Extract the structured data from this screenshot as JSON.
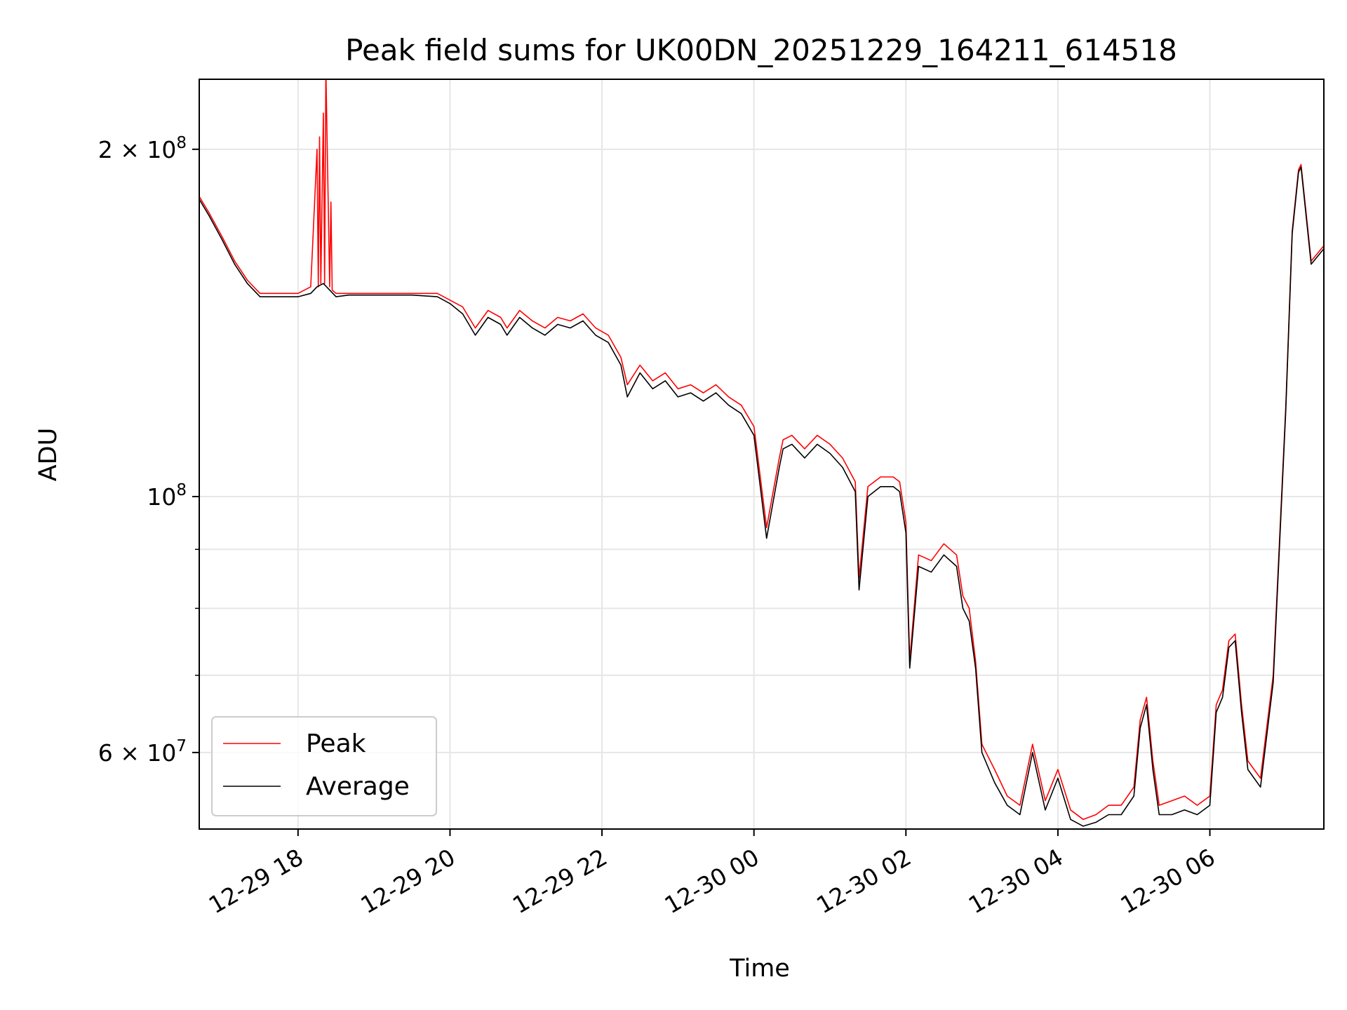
{
  "chart_data": {
    "type": "line",
    "title": "Peak field sums for UK00DN_20251229_164211_614518",
    "xlabel": "Time",
    "ylabel": "ADU",
    "yscale": "log",
    "ylim": [
      51500000,
      230000000
    ],
    "xlim": [
      "12-29 16:42",
      "12-30 07:30"
    ],
    "grid": true,
    "legend_position": "lower-left",
    "x_ticks": [
      "12-29 18",
      "12-29 20",
      "12-29 22",
      "12-30 00",
      "12-30 02",
      "12-30 04",
      "12-30 06"
    ],
    "y_tick_labels": [
      {
        "value": 200000000,
        "mantissa": "2",
        "exponent": "8"
      },
      {
        "value": 100000000,
        "mantissa": "",
        "exponent": "8"
      },
      {
        "value": 60000000,
        "mantissa": "6",
        "exponent": "7"
      }
    ],
    "y_minor_ticks": [
      70000000,
      80000000,
      90000000
    ],
    "series": [
      {
        "name": "Peak",
        "color": "#ff0000",
        "x": [
          "12-29 16:42",
          "12-29 16:50",
          "12-29 17:00",
          "12-29 17:10",
          "12-29 17:20",
          "12-29 17:30",
          "12-29 17:45",
          "12-29 18:00",
          "12-29 18:10",
          "12-29 18:15",
          "12-29 18:16",
          "12-29 18:17",
          "12-29 18:18",
          "12-29 18:20",
          "12-29 18:21",
          "12-29 18:22",
          "12-29 18:25",
          "12-29 18:26",
          "12-29 18:27",
          "12-29 18:30",
          "12-29 18:31",
          "12-29 18:32",
          "12-29 18:35",
          "12-29 18:40",
          "12-29 19:00",
          "12-29 19:30",
          "12-29 19:50",
          "12-29 20:00",
          "12-29 20:10",
          "12-29 20:20",
          "12-29 20:30",
          "12-29 20:40",
          "12-29 20:45",
          "12-29 20:55",
          "12-29 21:05",
          "12-29 21:15",
          "12-29 21:25",
          "12-29 21:35",
          "12-29 21:45",
          "12-29 21:55",
          "12-29 22:05",
          "12-29 22:15",
          "12-29 22:20",
          "12-29 22:30",
          "12-29 22:40",
          "12-29 22:50",
          "12-29 23:00",
          "12-29 23:10",
          "12-29 23:20",
          "12-29 23:30",
          "12-29 23:40",
          "12-29 23:50",
          "12-30 00:00",
          "12-30 00:10",
          "12-30 00:20",
          "12-30 00:23",
          "12-30 00:30",
          "12-30 00:40",
          "12-30 00:50",
          "12-30 01:00",
          "12-30 01:10",
          "12-30 01:20",
          "12-30 01:23",
          "12-30 01:30",
          "12-30 01:40",
          "12-30 01:50",
          "12-30 01:55",
          "12-30 02:00",
          "12-30 02:03",
          "12-30 02:10",
          "12-30 02:20",
          "12-30 02:30",
          "12-30 02:40",
          "12-30 02:45",
          "12-30 02:50",
          "12-30 02:55",
          "12-30 03:00",
          "12-30 03:10",
          "12-30 03:20",
          "12-30 03:30",
          "12-30 03:40",
          "12-30 03:50",
          "12-30 04:00",
          "12-30 04:10",
          "12-30 04:20",
          "12-30 04:30",
          "12-30 04:40",
          "12-30 04:50",
          "12-30 05:00",
          "12-30 05:05",
          "12-30 05:10",
          "12-30 05:15",
          "12-30 05:20",
          "12-30 05:30",
          "12-30 05:40",
          "12-30 05:50",
          "12-30 06:00",
          "12-30 06:05",
          "12-30 06:10",
          "12-30 06:15",
          "12-30 06:20",
          "12-30 06:25",
          "12-30 06:30",
          "12-30 06:40",
          "12-30 06:50",
          "12-30 07:00",
          "12-30 07:05",
          "12-30 07:10",
          "12-30 07:12",
          "12-30 07:20",
          "12-30 07:30"
        ],
        "y": [
          182000000,
          176000000,
          168000000,
          160000000,
          154000000,
          150000000,
          150000000,
          150000000,
          152000000,
          200000000,
          152000000,
          205000000,
          153000000,
          215000000,
          153000000,
          235000000,
          152000000,
          180000000,
          151000000,
          150000000,
          150000000,
          150000000,
          150000000,
          150000000,
          150000000,
          150000000,
          150000000,
          148000000,
          146000000,
          140000000,
          145000000,
          143000000,
          140000000,
          145000000,
          142000000,
          140000000,
          143000000,
          142000000,
          144000000,
          140000000,
          138000000,
          132000000,
          125000000,
          130000000,
          126000000,
          128000000,
          124000000,
          125000000,
          123000000,
          125000000,
          122000000,
          120000000,
          115000000,
          94000000,
          108000000,
          112000000,
          113000000,
          110000000,
          113000000,
          111000000,
          108000000,
          103000000,
          85000000,
          102000000,
          104000000,
          104000000,
          103000000,
          95000000,
          72000000,
          89000000,
          88000000,
          91000000,
          89000000,
          82000000,
          80000000,
          72000000,
          61000000,
          58000000,
          55000000,
          54000000,
          61000000,
          54500000,
          58000000,
          53500000,
          52500000,
          53000000,
          54000000,
          54000000,
          56000000,
          64000000,
          67000000,
          59000000,
          54000000,
          54500000,
          55000000,
          54000000,
          55000000,
          66000000,
          68000000,
          75000000,
          76000000,
          66000000,
          59000000,
          57000000,
          70000000,
          120000000,
          170000000,
          192000000,
          194000000,
          160000000,
          165000000
        ]
      },
      {
        "name": "Average",
        "color": "#000000",
        "x": [
          "12-29 16:42",
          "12-29 16:50",
          "12-29 17:00",
          "12-29 17:10",
          "12-29 17:20",
          "12-29 17:30",
          "12-29 17:45",
          "12-29 18:00",
          "12-29 18:10",
          "12-29 18:15",
          "12-29 18:20",
          "12-29 18:25",
          "12-29 18:30",
          "12-29 18:40",
          "12-29 19:00",
          "12-29 19:30",
          "12-29 19:50",
          "12-29 20:00",
          "12-29 20:10",
          "12-29 20:20",
          "12-29 20:30",
          "12-29 20:40",
          "12-29 20:45",
          "12-29 20:55",
          "12-29 21:05",
          "12-29 21:15",
          "12-29 21:25",
          "12-29 21:35",
          "12-29 21:45",
          "12-29 21:55",
          "12-29 22:05",
          "12-29 22:15",
          "12-29 22:20",
          "12-29 22:30",
          "12-29 22:40",
          "12-29 22:50",
          "12-29 23:00",
          "12-29 23:10",
          "12-29 23:20",
          "12-29 23:30",
          "12-29 23:40",
          "12-29 23:50",
          "12-30 00:00",
          "12-30 00:10",
          "12-30 00:20",
          "12-30 00:23",
          "12-30 00:30",
          "12-30 00:40",
          "12-30 00:50",
          "12-30 01:00",
          "12-30 01:10",
          "12-30 01:20",
          "12-30 01:23",
          "12-30 01:30",
          "12-30 01:40",
          "12-30 01:50",
          "12-30 01:55",
          "12-30 02:00",
          "12-30 02:03",
          "12-30 02:10",
          "12-30 02:20",
          "12-30 02:30",
          "12-30 02:40",
          "12-30 02:45",
          "12-30 02:50",
          "12-30 02:55",
          "12-30 03:00",
          "12-30 03:10",
          "12-30 03:20",
          "12-30 03:30",
          "12-30 03:40",
          "12-30 03:50",
          "12-30 04:00",
          "12-30 04:10",
          "12-30 04:20",
          "12-30 04:30",
          "12-30 04:40",
          "12-30 04:50",
          "12-30 05:00",
          "12-30 05:05",
          "12-30 05:10",
          "12-30 05:15",
          "12-30 05:20",
          "12-30 05:30",
          "12-30 05:40",
          "12-30 05:50",
          "12-30 06:00",
          "12-30 06:05",
          "12-30 06:10",
          "12-30 06:15",
          "12-30 06:20",
          "12-30 06:25",
          "12-30 06:30",
          "12-30 06:40",
          "12-30 06:50",
          "12-30 07:00",
          "12-30 07:05",
          "12-30 07:10",
          "12-30 07:12",
          "12-30 07:20",
          "12-30 07:30"
        ],
        "y": [
          181000000,
          175000000,
          167000000,
          159000000,
          153000000,
          149000000,
          149000000,
          149000000,
          150000000,
          152000000,
          153000000,
          151000000,
          149000000,
          149500000,
          149500000,
          149500000,
          149000000,
          147000000,
          144000000,
          138000000,
          143000000,
          141000000,
          138000000,
          143000000,
          140000000,
          138000000,
          141000000,
          140000000,
          142000000,
          138000000,
          136000000,
          130000000,
          122000000,
          128000000,
          124000000,
          126000000,
          122000000,
          123000000,
          121000000,
          123000000,
          120000000,
          118000000,
          113000000,
          92000000,
          106000000,
          110000000,
          111000000,
          108000000,
          111000000,
          109000000,
          106000000,
          101000000,
          83000000,
          100000000,
          102000000,
          102000000,
          101000000,
          93000000,
          71000000,
          87000000,
          86000000,
          89000000,
          87000000,
          80000000,
          78000000,
          71000000,
          60000000,
          56500000,
          54000000,
          53000000,
          60000000,
          53500000,
          57000000,
          52500000,
          51800000,
          52200000,
          53000000,
          53000000,
          55000000,
          63000000,
          66000000,
          58000000,
          53000000,
          53000000,
          53500000,
          53000000,
          54000000,
          65000000,
          67000000,
          74000000,
          75000000,
          65000000,
          58000000,
          56000000,
          69000000,
          119000000,
          169000000,
          191000000,
          193000000,
          159000000,
          164000000
        ]
      }
    ]
  }
}
